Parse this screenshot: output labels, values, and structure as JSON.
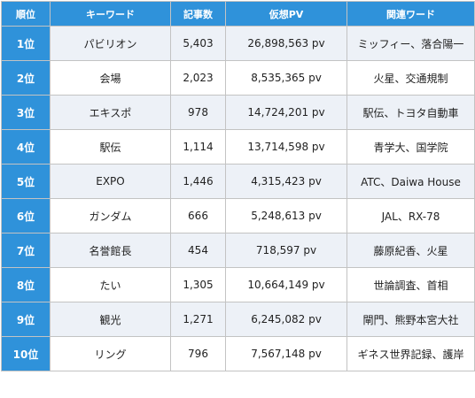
{
  "colors": {
    "header_bg": "#2f92da",
    "stripe_bg": "#edf1f7",
    "border": "#c3c3c3"
  },
  "headers": [
    "順位",
    "キーワード",
    "記事数",
    "仮想PV",
    "関連ワード"
  ],
  "rows": [
    [
      "1位",
      "パビリオン",
      "5,403",
      "26,898,563 pv",
      "ミッフィー、落合陽一"
    ],
    [
      "2位",
      "会場",
      "2,023",
      "8,535,365 pv",
      "火星、交通規制"
    ],
    [
      "3位",
      "エキスポ",
      "978",
      "14,724,201 pv",
      "駅伝、トヨタ自動車"
    ],
    [
      "4位",
      "駅伝",
      "1,114",
      "13,714,598 pv",
      "青学大、国学院"
    ],
    [
      "5位",
      "EXPO",
      "1,446",
      "4,315,423 pv",
      "ATC、Daiwa House"
    ],
    [
      "6位",
      "ガンダム",
      "666",
      "5,248,613 pv",
      "JAL、RX-78"
    ],
    [
      "7位",
      "名誉館長",
      "454",
      "718,597 pv",
      "藤原紀香、火星"
    ],
    [
      "8位",
      "たい",
      "1,305",
      "10,664,149 pv",
      "世論調査、首相"
    ],
    [
      "9位",
      "観光",
      "1,271",
      "6,245,082 pv",
      "閘門、熊野本宮大社"
    ],
    [
      "10位",
      "リング",
      "796",
      "7,567,148 pv",
      "ギネス世界記録、護岸"
    ]
  ]
}
